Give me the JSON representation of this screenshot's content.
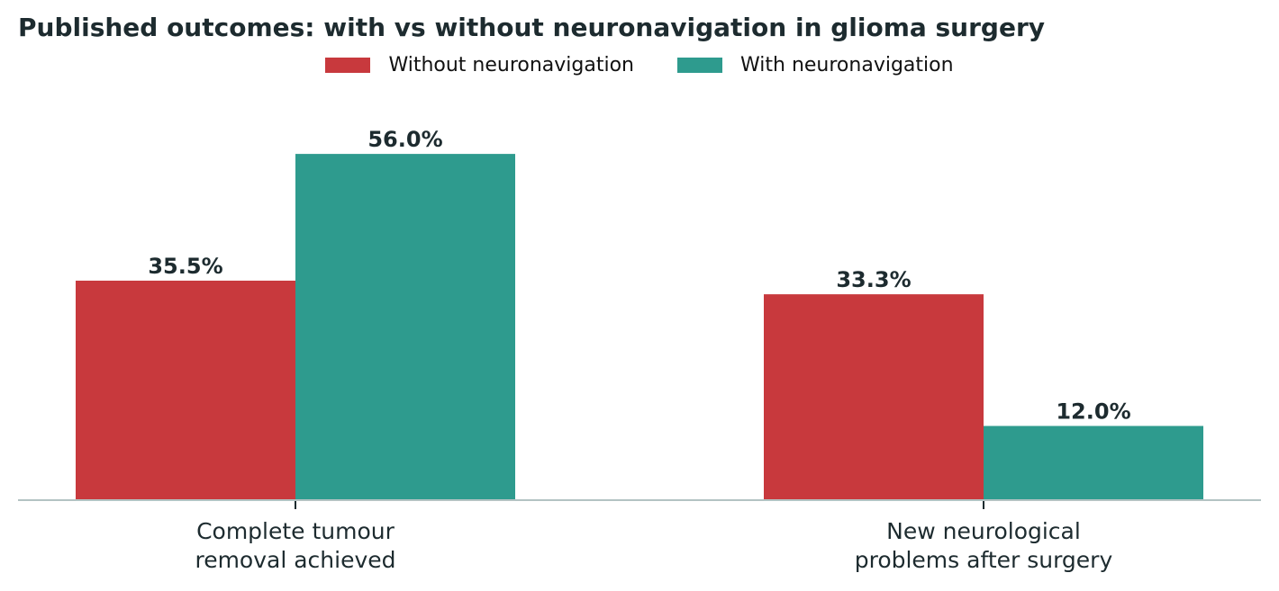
{
  "chart_data": {
    "type": "bar",
    "title": "Published outcomes: with vs without neuronavigation in glioma surgery",
    "xlabel": "",
    "ylabel": "",
    "categories": [
      [
        "Complete tumour",
        "removal achieved"
      ],
      [
        "New neurological",
        "problems after surgery"
      ]
    ],
    "series": [
      {
        "name": "Without neuronavigation",
        "color": "#c8393d",
        "values": [
          35.5,
          33.3
        ]
      },
      {
        "name": "With neuronavigation",
        "color": "#2e9b8e",
        "values": [
          56.0,
          12.0
        ]
      }
    ],
    "value_format": "percent_1dp",
    "ylim": [
      0,
      63
    ],
    "grid": false,
    "legend_position": "top-center",
    "colors": {
      "axis": "#b3c3c3",
      "text": "#1d2b2f"
    }
  }
}
